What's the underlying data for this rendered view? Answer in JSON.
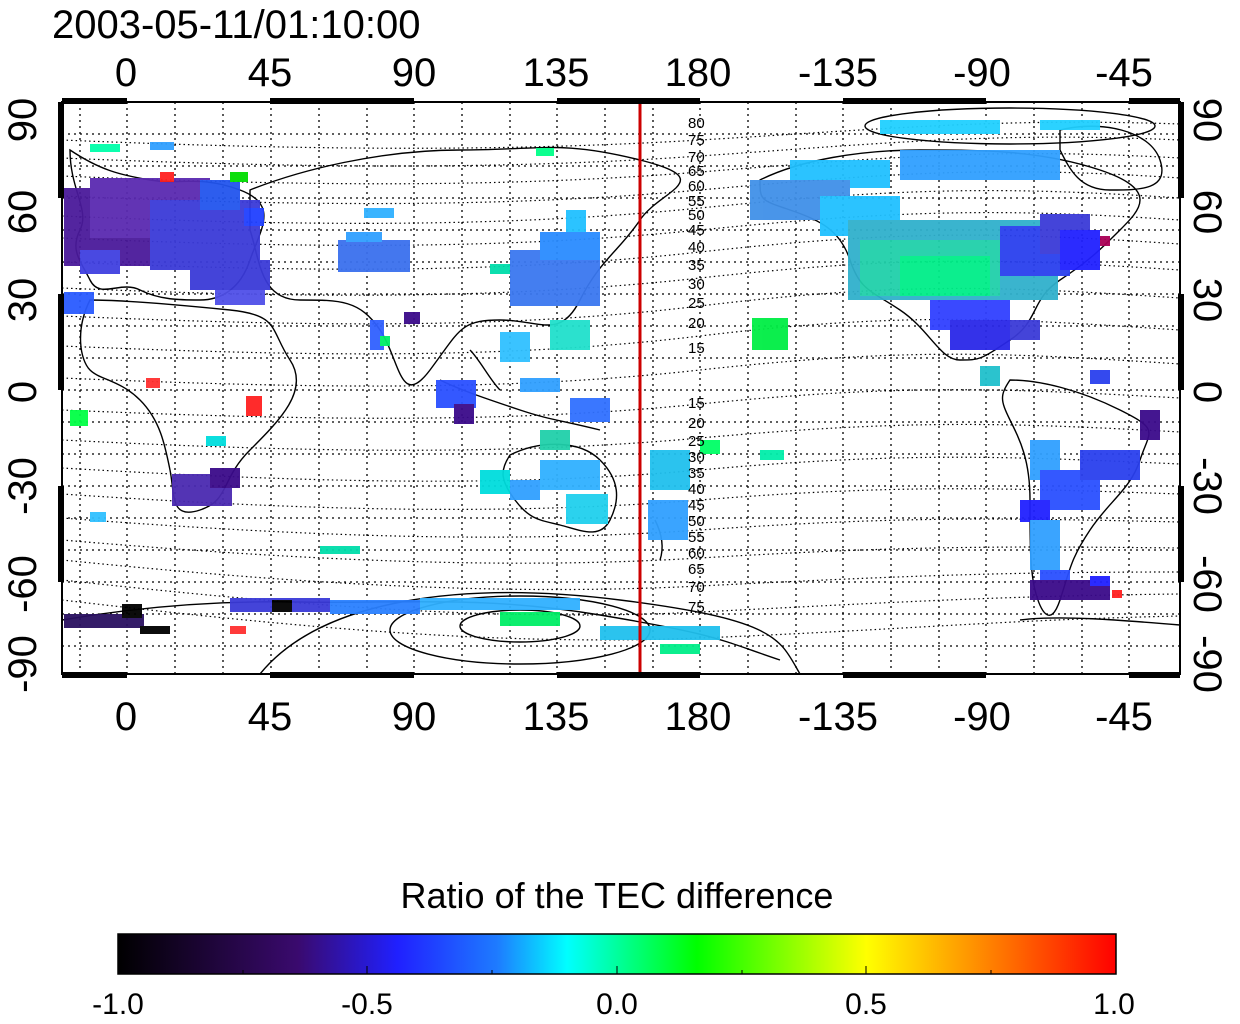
{
  "map": {
    "timestamp": "2003-05-11/01:10:00",
    "top_axis_labels": [
      "0",
      "45",
      "90",
      "135",
      "180",
      "-135",
      "-90",
      "-45"
    ],
    "bottom_axis_labels": [
      "0",
      "45",
      "90",
      "135",
      "180",
      "-135",
      "-90",
      "-45"
    ],
    "left_axis_labels": [
      "90",
      "60",
      "30",
      "0",
      "-30",
      "-60",
      "-90"
    ],
    "right_axis_labels": [
      "90",
      "60",
      "30",
      "0",
      "-30",
      "-60",
      "-90"
    ],
    "terminator_color": "#cc0000",
    "contour_labels_north": [
      "80",
      "75",
      "70",
      "65",
      "60",
      "55",
      "50",
      "45",
      "40",
      "35",
      "30",
      "25",
      "20",
      "15"
    ],
    "contour_labels_south": [
      "15",
      "20",
      "25",
      "30",
      "35",
      "40",
      "45",
      "50",
      "55",
      "60",
      "65",
      "70",
      "75"
    ]
  },
  "colorbar": {
    "title": "Ratio of the TEC difference",
    "tick_labels": [
      "-1.0",
      "-0.5",
      "0.0",
      "0.5",
      "1.0"
    ],
    "colors": [
      "#000000",
      "#3a0a6e",
      "#2020ff",
      "#00ffff",
      "#00ff00",
      "#ffff00",
      "#ff0000"
    ]
  }
}
